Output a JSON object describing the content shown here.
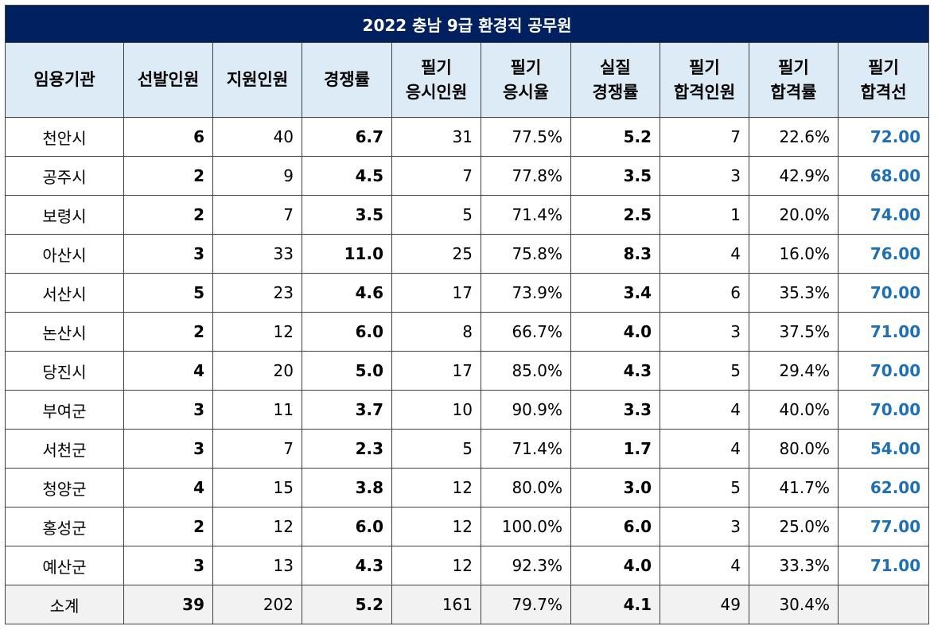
{
  "title": "2022 충남 9급 환경직  공무원",
  "headers": [
    [
      "임용기관"
    ],
    [
      "선발인원"
    ],
    [
      "지원인원"
    ],
    [
      "경쟁률"
    ],
    [
      "필기",
      "응시인원"
    ],
    [
      "필기",
      "응시율"
    ],
    [
      "실질",
      "경쟁률"
    ],
    [
      "필기",
      "합격인원"
    ],
    [
      "필기",
      "합격률"
    ],
    [
      "필기",
      "합격선"
    ]
  ],
  "rows": [
    [
      "천안시",
      "6",
      "40",
      "6.7",
      "31",
      "77.5%",
      "5.2",
      "7",
      "22.6%",
      "72.00"
    ],
    [
      "공주시",
      "2",
      "9",
      "4.5",
      "7",
      "77.8%",
      "3.5",
      "3",
      "42.9%",
      "68.00"
    ],
    [
      "보령시",
      "2",
      "7",
      "3.5",
      "5",
      "71.4%",
      "2.5",
      "1",
      "20.0%",
      "74.00"
    ],
    [
      "아산시",
      "3",
      "33",
      "11.0",
      "25",
      "75.8%",
      "8.3",
      "4",
      "16.0%",
      "76.00"
    ],
    [
      "서산시",
      "5",
      "23",
      "4.6",
      "17",
      "73.9%",
      "3.4",
      "6",
      "35.3%",
      "70.00"
    ],
    [
      "논산시",
      "2",
      "12",
      "6.0",
      "8",
      "66.7%",
      "4.0",
      "3",
      "37.5%",
      "71.00"
    ],
    [
      "당진시",
      "4",
      "20",
      "5.0",
      "17",
      "85.0%",
      "4.3",
      "5",
      "29.4%",
      "70.00"
    ],
    [
      "부여군",
      "3",
      "11",
      "3.7",
      "10",
      "90.9%",
      "3.3",
      "4",
      "40.0%",
      "70.00"
    ],
    [
      "서천군",
      "3",
      "7",
      "2.3",
      "5",
      "71.4%",
      "1.7",
      "4",
      "80.0%",
      "54.00"
    ],
    [
      "청양군",
      "4",
      "15",
      "3.8",
      "12",
      "80.0%",
      "3.0",
      "5",
      "41.7%",
      "62.00"
    ],
    [
      "홍성군",
      "2",
      "12",
      "6.0",
      "12",
      "100.0%",
      "6.0",
      "3",
      "25.0%",
      "77.00"
    ],
    [
      "예산군",
      "3",
      "13",
      "4.3",
      "12",
      "92.3%",
      "4.0",
      "4",
      "33.3%",
      "71.00"
    ]
  ],
  "total": [
    "소계",
    "39",
    "202",
    "5.2",
    "161",
    "79.7%",
    "4.1",
    "49",
    "30.4%",
    ""
  ],
  "colors": {
    "title_bg": "#002060",
    "header_bg": "#ddebf7",
    "cutoff_text": "#1f6fb5",
    "total_bg": "#f2f2f2"
  }
}
